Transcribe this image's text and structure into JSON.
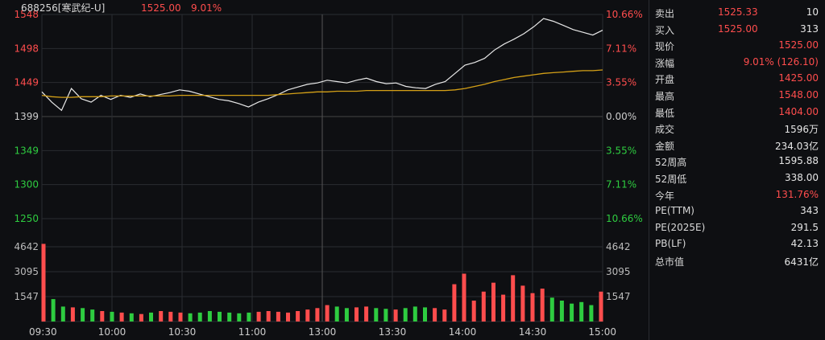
{
  "header": {
    "code": "688256[寒武纪-U]",
    "price": "1525.00",
    "change_pct": "9.01%"
  },
  "colors": {
    "up": "#ff4d4d",
    "down": "#2ecc40",
    "price_line": "#e8e8e8",
    "avg_line": "#d4a017",
    "grid": "#2a2c31"
  },
  "chart_data": {
    "type": "line",
    "price_axis": {
      "labels": [
        "1548",
        "1498",
        "1449",
        "1399",
        "1349",
        "1300",
        "1250"
      ],
      "min": 1250,
      "max": 1548,
      "prev_close": 1399
    },
    "pct_axis": {
      "labels": [
        "10.66%",
        "7.11%",
        "3.55%",
        "0.00%",
        "3.55%",
        "7.11%",
        "10.66%"
      ]
    },
    "volume_axis": {
      "labels": [
        "4642",
        "3095",
        "1547"
      ],
      "max": 6190
    },
    "time_labels": [
      "09:30",
      "10:00",
      "10:30",
      "11:00",
      "13:00",
      "13:30",
      "14:00",
      "14:30",
      "15:00"
    ],
    "series": [
      {
        "values": [
          1435,
          1420,
          1408,
          1440,
          1425,
          1420,
          1430,
          1424,
          1430,
          1427,
          1432,
          1428,
          1431,
          1434,
          1438,
          1436,
          1432,
          1428,
          1424,
          1422,
          1418,
          1413,
          1420,
          1425,
          1431,
          1438,
          1442,
          1446,
          1448,
          1452,
          1450,
          1448,
          1452,
          1455,
          1450,
          1447,
          1448,
          1443,
          1441,
          1440,
          1446,
          1450,
          1462,
          1474,
          1478,
          1484,
          1496,
          1505,
          1512,
          1520,
          1530,
          1542,
          1538,
          1532,
          1526,
          1522,
          1518,
          1525
        ]
      },
      {
        "values": [
          1430,
          1428,
          1427,
          1427,
          1428,
          1428,
          1428,
          1429,
          1429,
          1429,
          1429,
          1429,
          1429,
          1429,
          1430,
          1430,
          1430,
          1430,
          1430,
          1430,
          1430,
          1430,
          1430,
          1430,
          1431,
          1432,
          1433,
          1434,
          1435,
          1435,
          1436,
          1436,
          1436,
          1437,
          1437,
          1437,
          1437,
          1437,
          1437,
          1437,
          1437,
          1437,
          1438,
          1440,
          1443,
          1446,
          1450,
          1453,
          1456,
          1458,
          1460,
          1462,
          1463,
          1464,
          1465,
          1466,
          1466,
          1467
        ]
      }
    ],
    "volume": [
      5200,
      1500,
      1000,
      950,
      900,
      800,
      700,
      650,
      600,
      550,
      500,
      600,
      700,
      650,
      600,
      550,
      600,
      700,
      650,
      600,
      550,
      600,
      650,
      700,
      650,
      600,
      700,
      800,
      900,
      1100,
      1000,
      900,
      950,
      1000,
      900,
      850,
      800,
      900,
      1000,
      950,
      900,
      800,
      2500,
      3200,
      1400,
      2000,
      2600,
      1800,
      3100,
      2400,
      1900,
      2200,
      1600,
      1400,
      1200,
      1300,
      1100,
      2000
    ]
  },
  "panel": {
    "rows": [
      {
        "label": "卖出",
        "v1": "1525.33",
        "v2": "10"
      },
      {
        "label": "买入",
        "v1": "1525.00",
        "v2": "313"
      },
      {
        "label": "现价",
        "value": "1525.00",
        "color": "red"
      },
      {
        "label": "涨幅",
        "value": "9.01% (126.10)",
        "color": "red"
      },
      {
        "label": "开盘",
        "value": "1425.00",
        "color": "red"
      },
      {
        "label": "最高",
        "value": "1548.00",
        "color": "red"
      },
      {
        "label": "最低",
        "value": "1404.00",
        "color": "red"
      },
      {
        "label": "成交",
        "value": "1596万",
        "color": "white"
      },
      {
        "label": "金额",
        "value": "234.03亿",
        "color": "white"
      },
      {
        "label": "52周高",
        "value": "1595.88",
        "color": "white"
      },
      {
        "label": "52周低",
        "value": "338.00",
        "color": "white"
      },
      {
        "label": "今年",
        "value": "131.76%",
        "color": "red"
      },
      {
        "label": "PE(TTM)",
        "value": "343",
        "color": "white"
      },
      {
        "label": "PE(2025E)",
        "value": "291.5",
        "color": "white"
      },
      {
        "label": "PB(LF)",
        "value": "42.13",
        "color": "white"
      },
      {
        "label": "总市值",
        "value": "6431亿",
        "color": "white"
      }
    ]
  }
}
